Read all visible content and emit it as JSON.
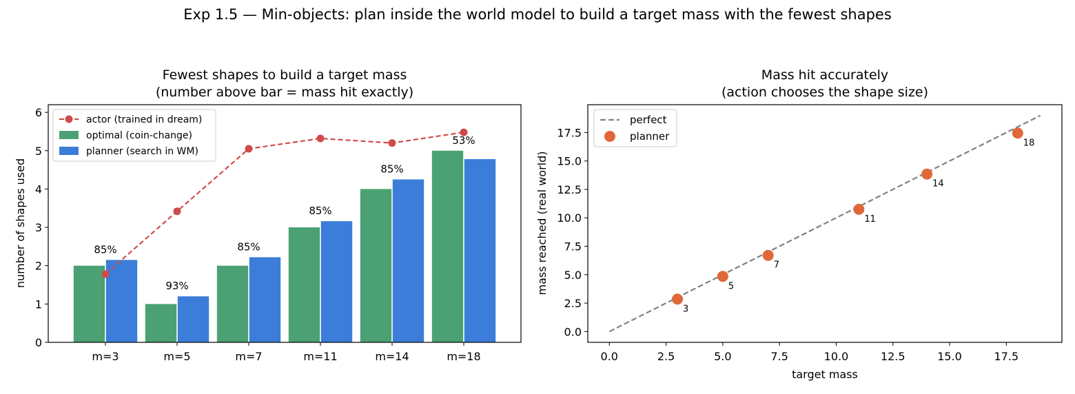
{
  "suptitle": "Exp 1.5 — Min-objects: plan inside the world model to build a target mass with the fewest shapes",
  "colors": {
    "optimal": "#4ba173",
    "planner_bar": "#3b7dd8",
    "actor": "#d14a4a",
    "perfect": "#808080",
    "planner_point": "#df6839"
  },
  "chart_data": [
    {
      "type": "bar",
      "title": "Fewest shapes to build a target mass",
      "subtitle": "(number above bar = mass hit exactly)",
      "xlabel": "",
      "ylabel": "number of shapes used",
      "ylim": [
        0,
        6.2
      ],
      "yticks": [
        "0",
        "1",
        "2",
        "3",
        "4",
        "5",
        "6"
      ],
      "categories": [
        "m=3",
        "m=5",
        "m=7",
        "m=11",
        "m=14",
        "m=18"
      ],
      "series": [
        {
          "name": "optimal (coin-change)",
          "kind": "bar",
          "values": [
            2,
            1,
            2,
            3,
            4,
            5
          ]
        },
        {
          "name": "planner (search in WM)",
          "kind": "bar",
          "values": [
            2.15,
            1.2,
            2.22,
            3.16,
            4.25,
            4.78
          ]
        },
        {
          "name": "actor (trained in dream)",
          "kind": "line",
          "values": [
            1.78,
            3.42,
            5.05,
            5.32,
            5.2,
            5.48
          ]
        }
      ],
      "bar_labels": [
        "85%",
        "93%",
        "85%",
        "85%",
        "85%",
        "53%"
      ],
      "legend": {
        "position": "upper-left",
        "order": [
          "actor (trained in dream)",
          "optimal (coin-change)",
          "planner (search in WM)"
        ]
      }
    },
    {
      "type": "scatter",
      "title": "Mass hit accurately",
      "subtitle": "(action chooses the shape size)",
      "xlabel": "target mass",
      "ylabel": "mass reached (real world)",
      "xlim": [
        -0.95,
        19.95
      ],
      "ylim": [
        -0.95,
        19.95
      ],
      "xticks": [
        "0.0",
        "2.5",
        "5.0",
        "7.5",
        "10.0",
        "12.5",
        "15.0",
        "17.5"
      ],
      "yticks": [
        "0.0",
        "2.5",
        "5.0",
        "7.5",
        "10.0",
        "12.5",
        "15.0",
        "17.5"
      ],
      "series": [
        {
          "name": "perfect",
          "kind": "dashed-line",
          "x": [
            0,
            19
          ],
          "y": [
            0,
            19
          ]
        },
        {
          "name": "planner",
          "kind": "points",
          "x": [
            3,
            5,
            7,
            11,
            14,
            18
          ],
          "y": [
            2.85,
            4.85,
            6.7,
            10.75,
            13.85,
            17.45
          ]
        }
      ],
      "point_labels": [
        "3",
        "5",
        "7",
        "11",
        "14",
        "18"
      ],
      "legend": {
        "position": "upper-left",
        "order": [
          "perfect",
          "planner"
        ]
      }
    }
  ]
}
